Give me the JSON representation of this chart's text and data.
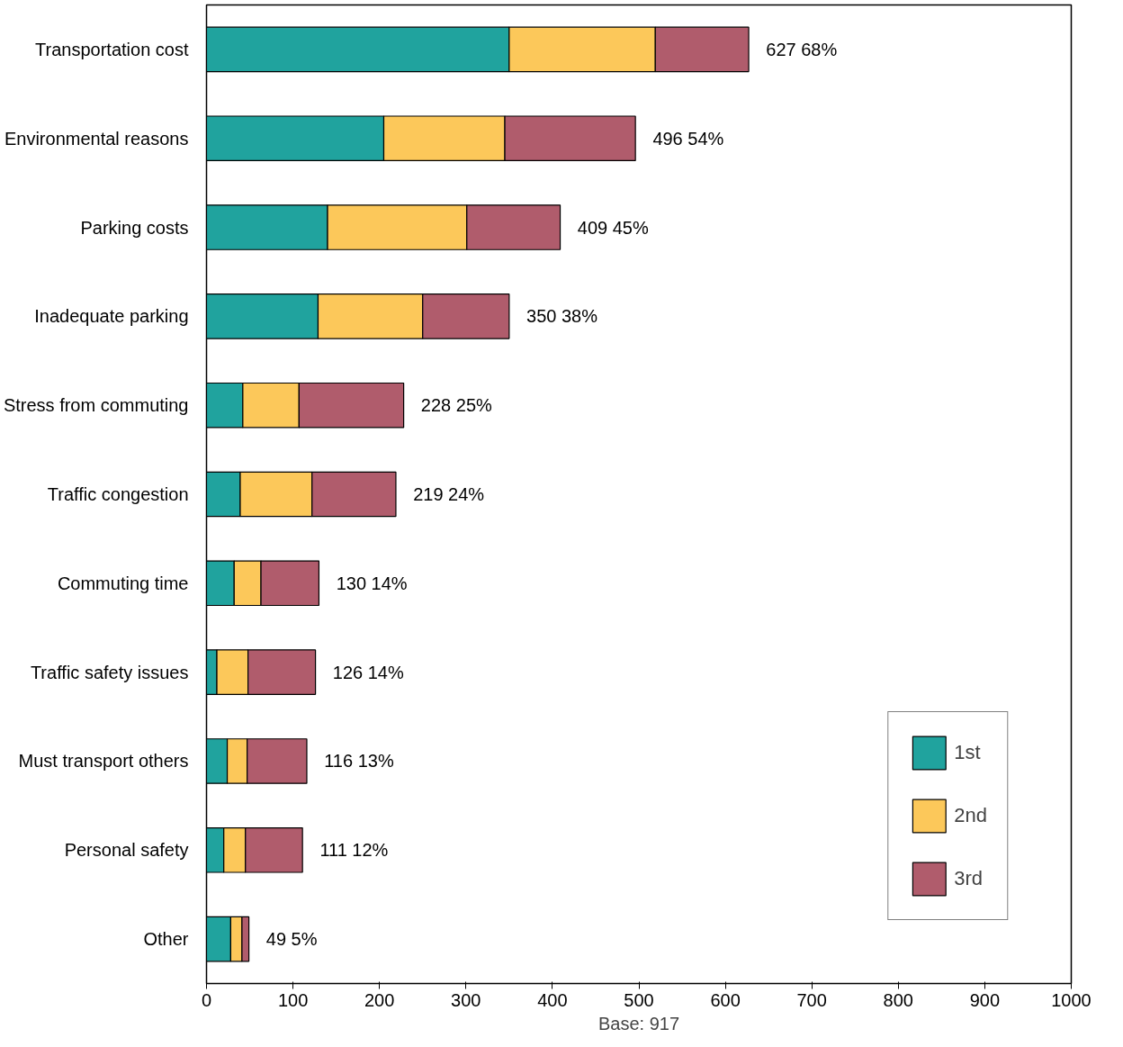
{
  "chart_data": {
    "type": "bar",
    "orientation": "horizontal",
    "stacked": true,
    "xlabel": "Base: 917",
    "categories": [
      "Transportation cost",
      "Environmental reasons",
      "Parking costs",
      "Inadequate parking",
      "Stress from commuting",
      "Traffic congestion",
      "Commuting time",
      "Traffic safety issues",
      "Must transport others",
      "Personal safety",
      "Other"
    ],
    "series": [
      {
        "name": "1st",
        "color": "#20a39e",
        "values": [
          350,
          205,
          140,
          129,
          42,
          39,
          32,
          12,
          24,
          20,
          28
        ]
      },
      {
        "name": "2nd",
        "color": "#fcc85a",
        "values": [
          169,
          140,
          161,
          121,
          65,
          83,
          31,
          36,
          23,
          25,
          13
        ]
      },
      {
        "name": "3rd",
        "color": "#b05c6c",
        "values": [
          108,
          151,
          108,
          100,
          121,
          97,
          67,
          78,
          69,
          66,
          8
        ]
      }
    ],
    "totals": [
      "627    68%",
      "496    54%",
      "409    45%",
      "350    38%",
      "228    25%",
      "219    24%",
      "130    14%",
      "126    14%",
      "116    13%",
      "111    12%",
      "49   5%"
    ],
    "xlim": [
      0,
      1000
    ],
    "xticks": [
      0,
      100,
      200,
      300,
      400,
      500,
      600,
      700,
      800,
      900,
      1000
    ],
    "legend": "bottom right",
    "grid": false
  }
}
